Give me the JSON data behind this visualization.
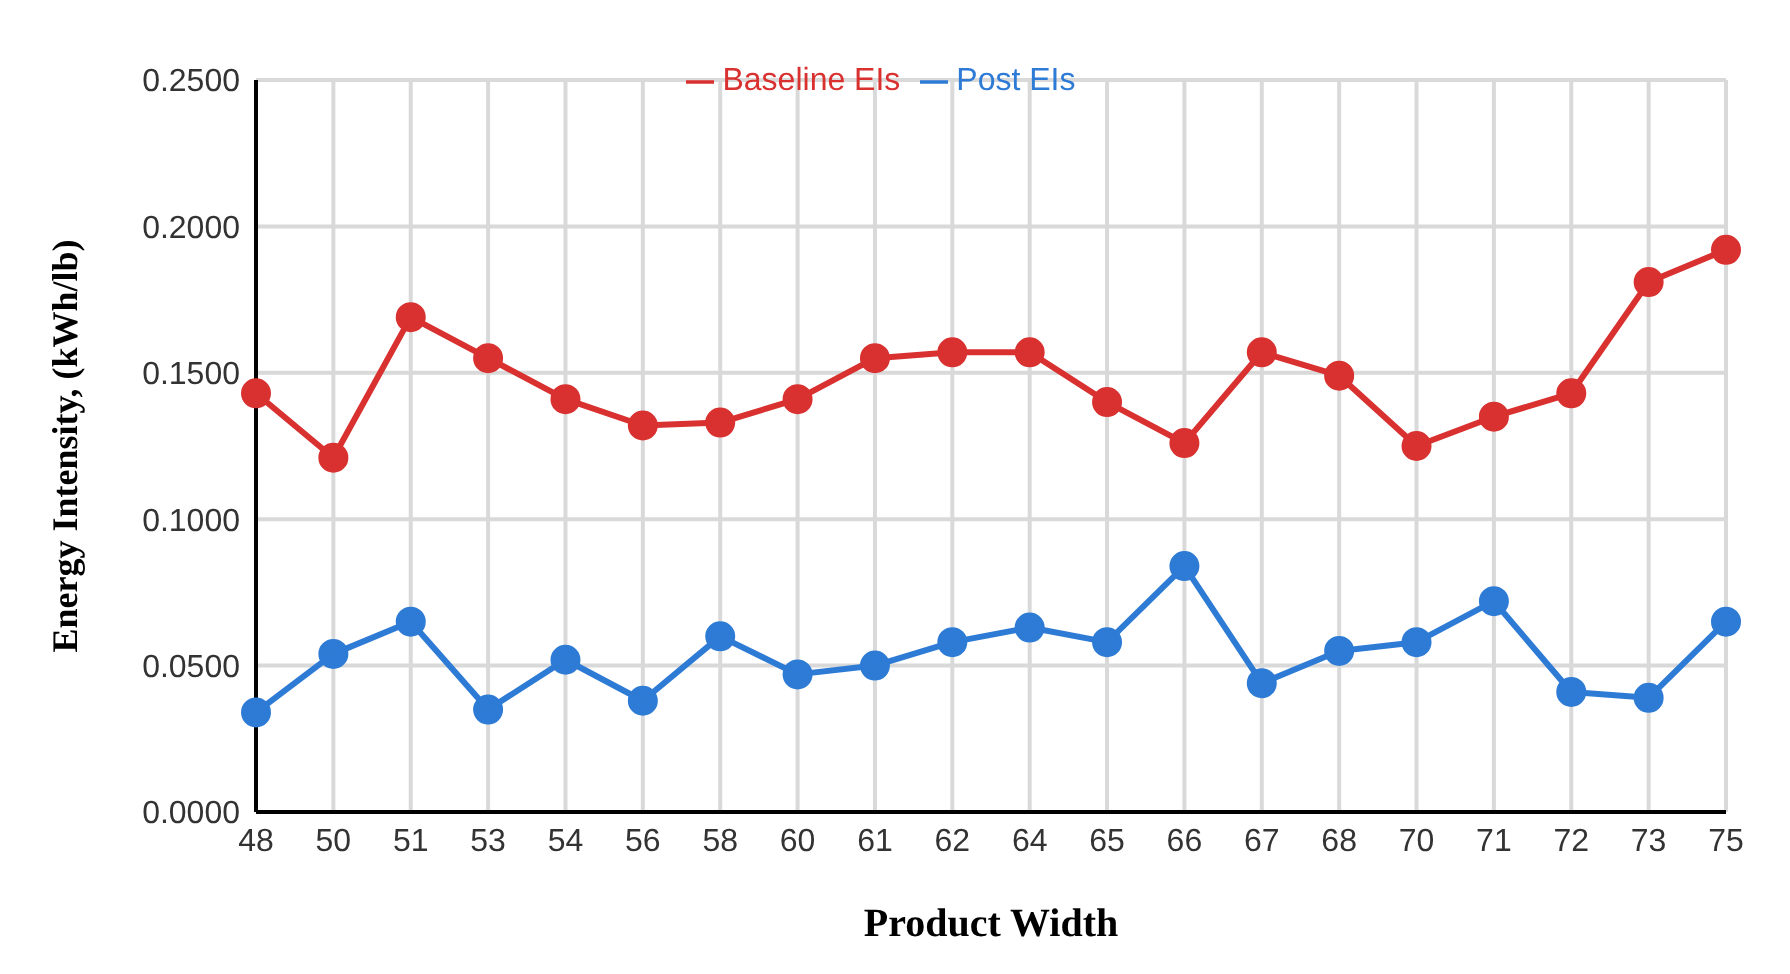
{
  "chart_data": {
    "type": "line",
    "xlabel": "Product Width",
    "ylabel": "Energy Intensity, (kWh/lb)",
    "categories": [
      "48",
      "50",
      "51",
      "53",
      "54",
      "56",
      "58",
      "60",
      "61",
      "62",
      "64",
      "65",
      "66",
      "67",
      "68",
      "70",
      "71",
      "72",
      "73",
      "75"
    ],
    "series": [
      {
        "name": "Post EIs",
        "color": "#2e7bd6",
        "values": [
          0.034,
          0.054,
          0.065,
          0.035,
          0.052,
          0.038,
          0.06,
          0.047,
          0.05,
          0.058,
          0.063,
          0.058,
          0.084,
          0.044,
          0.055,
          0.058,
          0.072,
          0.041,
          0.039,
          0.065
        ]
      },
      {
        "name": "Baseline EIs",
        "color": "#d93030",
        "values": [
          0.143,
          0.121,
          0.169,
          0.155,
          0.141,
          0.132,
          0.133,
          0.141,
          0.155,
          0.157,
          0.157,
          0.14,
          0.126,
          0.157,
          0.149,
          0.125,
          0.135,
          0.143,
          0.181,
          0.192
        ]
      }
    ],
    "ylim": [
      0,
      0.25
    ],
    "yticks": [
      {
        "value": 0,
        "label": "0.0000"
      },
      {
        "value": 0.05,
        "label": "0.0500"
      },
      {
        "value": 0.1,
        "label": "0.1000"
      },
      {
        "value": 0.15,
        "label": "0.1500"
      },
      {
        "value": 0.2,
        "label": "0.2000"
      },
      {
        "value": 0.25,
        "label": "0.2500"
      }
    ],
    "grid": true,
    "legend": "top",
    "marker": "circle",
    "line_style": "solid"
  }
}
